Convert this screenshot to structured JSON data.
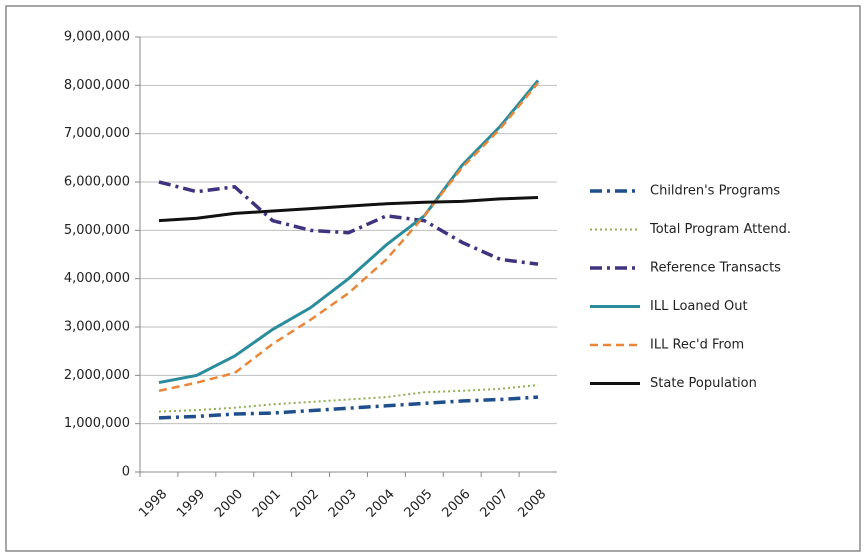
{
  "chart_data": {
    "type": "line",
    "categories": [
      "1998",
      "1999",
      "2000",
      "2001",
      "2002",
      "2003",
      "2004",
      "2005",
      "2006",
      "2007",
      "2008"
    ],
    "ylim": [
      0,
      9000000
    ],
    "yticks": [
      0,
      {
        "value": 1000000,
        "label": "1,000,000"
      },
      {
        "value": 2000000,
        "label": "2,000,000"
      },
      {
        "value": 3000000,
        "label": "3,000,000"
      },
      {
        "value": 4000000,
        "label": "4,000,000"
      },
      {
        "value": 5000000,
        "label": "5,000,000"
      },
      {
        "value": 6000000,
        "label": "6,000,000"
      },
      {
        "value": 7000000,
        "label": "7,000,000"
      },
      {
        "value": 8000000,
        "label": "8,000,000"
      },
      {
        "value": 9000000,
        "label": "9,000,000"
      }
    ],
    "grid": true,
    "legend": "right",
    "series": [
      {
        "name": "Children's Programs",
        "color": "#1f4e8c",
        "dash": "dash-dot",
        "values": [
          1120000,
          1150000,
          1200000,
          1220000,
          1270000,
          1320000,
          1370000,
          1420000,
          1470000,
          1500000,
          1550000
        ]
      },
      {
        "name": "Total Program Attend.",
        "color": "#8cb050",
        "dash": "dotted",
        "values": [
          1250000,
          1280000,
          1330000,
          1400000,
          1450000,
          1500000,
          1550000,
          1650000,
          1680000,
          1720000,
          1800000
        ]
      },
      {
        "name": "Reference Transacts",
        "color": "#3f3380",
        "dash": "dash-dot",
        "values": [
          6000000,
          5800000,
          5900000,
          5200000,
          5000000,
          4950000,
          5300000,
          5200000,
          4750000,
          4400000,
          4300000
        ]
      },
      {
        "name": "ILL Loaned Out",
        "color": "#2b8c9c",
        "dash": "solid",
        "values": [
          1850000,
          2000000,
          2400000,
          2950000,
          3400000,
          4000000,
          4700000,
          5300000,
          6350000,
          7150000,
          8100000
        ]
      },
      {
        "name": "ILL Rec'd From",
        "color": "#e8873a",
        "dash": "dashed",
        "values": [
          1680000,
          1850000,
          2050000,
          2650000,
          3150000,
          3700000,
          4400000,
          5300000,
          6300000,
          7100000,
          8050000
        ]
      },
      {
        "name": "State Population",
        "color": "#111111",
        "dash": "solid",
        "values": [
          5200000,
          5250000,
          5350000,
          5400000,
          5450000,
          5500000,
          5550000,
          5580000,
          5600000,
          5650000,
          5680000
        ]
      }
    ]
  }
}
